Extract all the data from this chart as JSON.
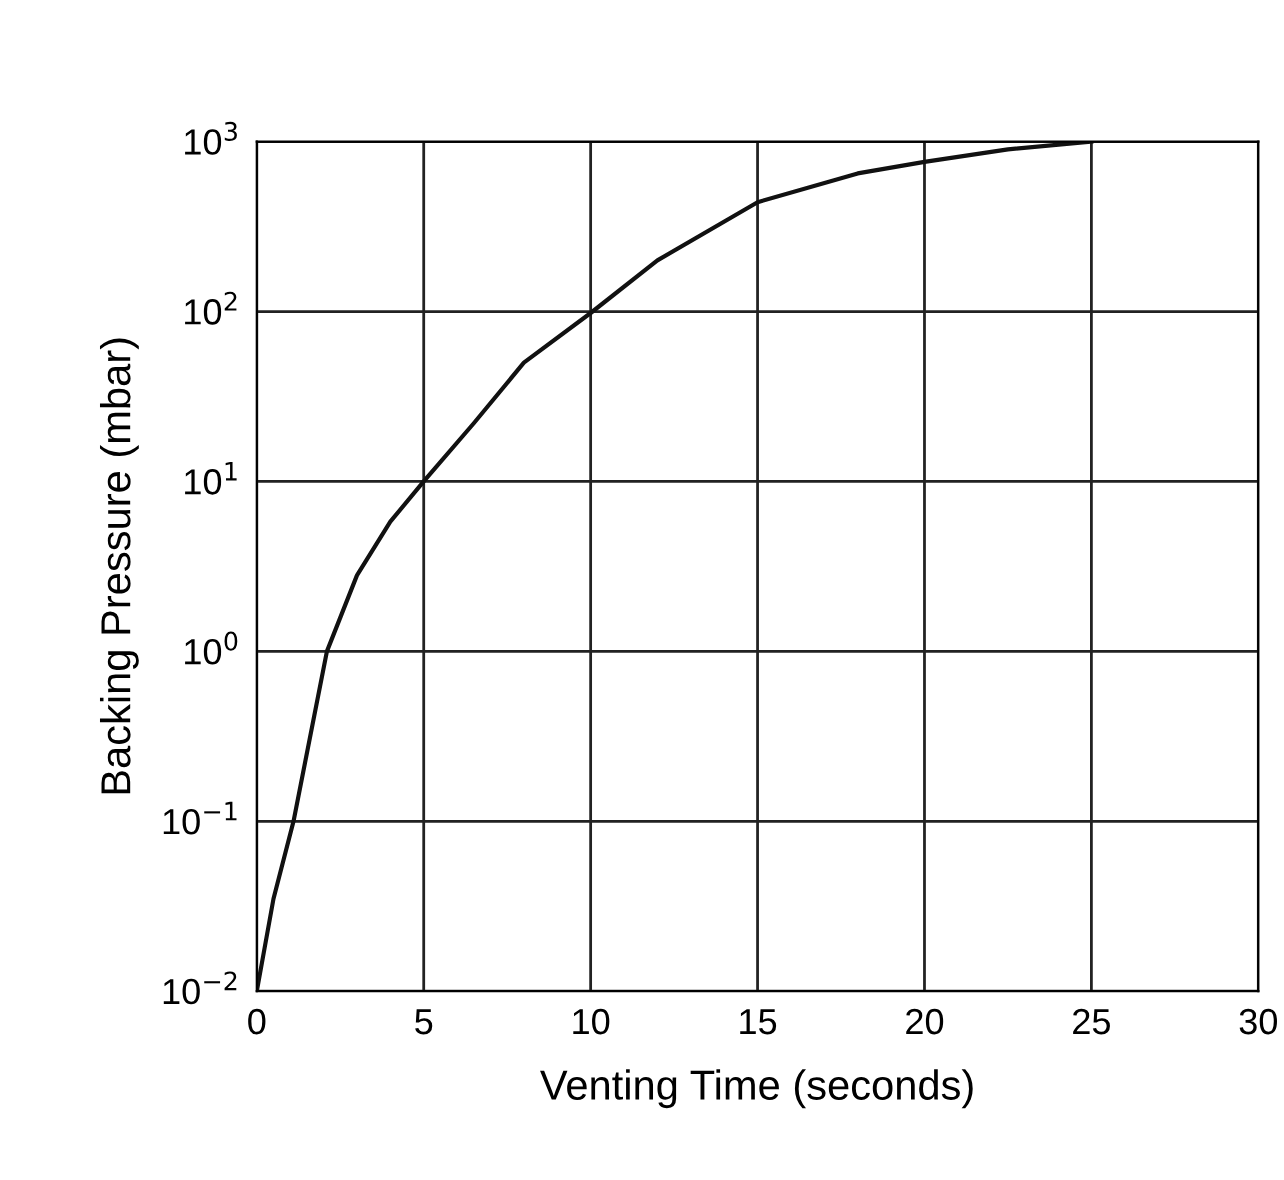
{
  "chart_data": {
    "type": "line",
    "xlabel": "Venting Time (seconds)",
    "ylabel": "Backing Pressure (mbar)",
    "x": [
      0,
      0.5,
      1.1,
      2.1,
      3,
      4,
      5,
      6.5,
      8,
      10,
      12,
      15,
      18,
      20,
      22.5,
      25
    ],
    "series": [
      {
        "color": "#111111",
        "values": [
          0.01,
          0.035,
          0.1,
          1,
          2.8,
          5.8,
          10,
          22,
          50,
          98,
          200,
          440,
          650,
          760,
          900,
          1000
        ]
      }
    ],
    "log": "y",
    "xlim": [
      0,
      30
    ],
    "xticks": [
      0,
      5,
      10,
      15,
      20,
      25,
      30
    ],
    "ylim": [
      0.01,
      1000
    ],
    "yticks": [
      {
        "value": 0.01,
        "label": "10$^{−2}$"
      },
      {
        "value": 0.1,
        "label": "10$^{−1}$"
      },
      {
        "value": 1,
        "label": "10$^{0}$"
      },
      {
        "value": 10,
        "label": "10$^{1}$"
      },
      {
        "value": 100,
        "label": "10$^{2}$"
      },
      {
        "value": 1000,
        "label": "10$^{3}$"
      }
    ],
    "grid": true,
    "marker": "none",
    "line_style": "solid"
  }
}
